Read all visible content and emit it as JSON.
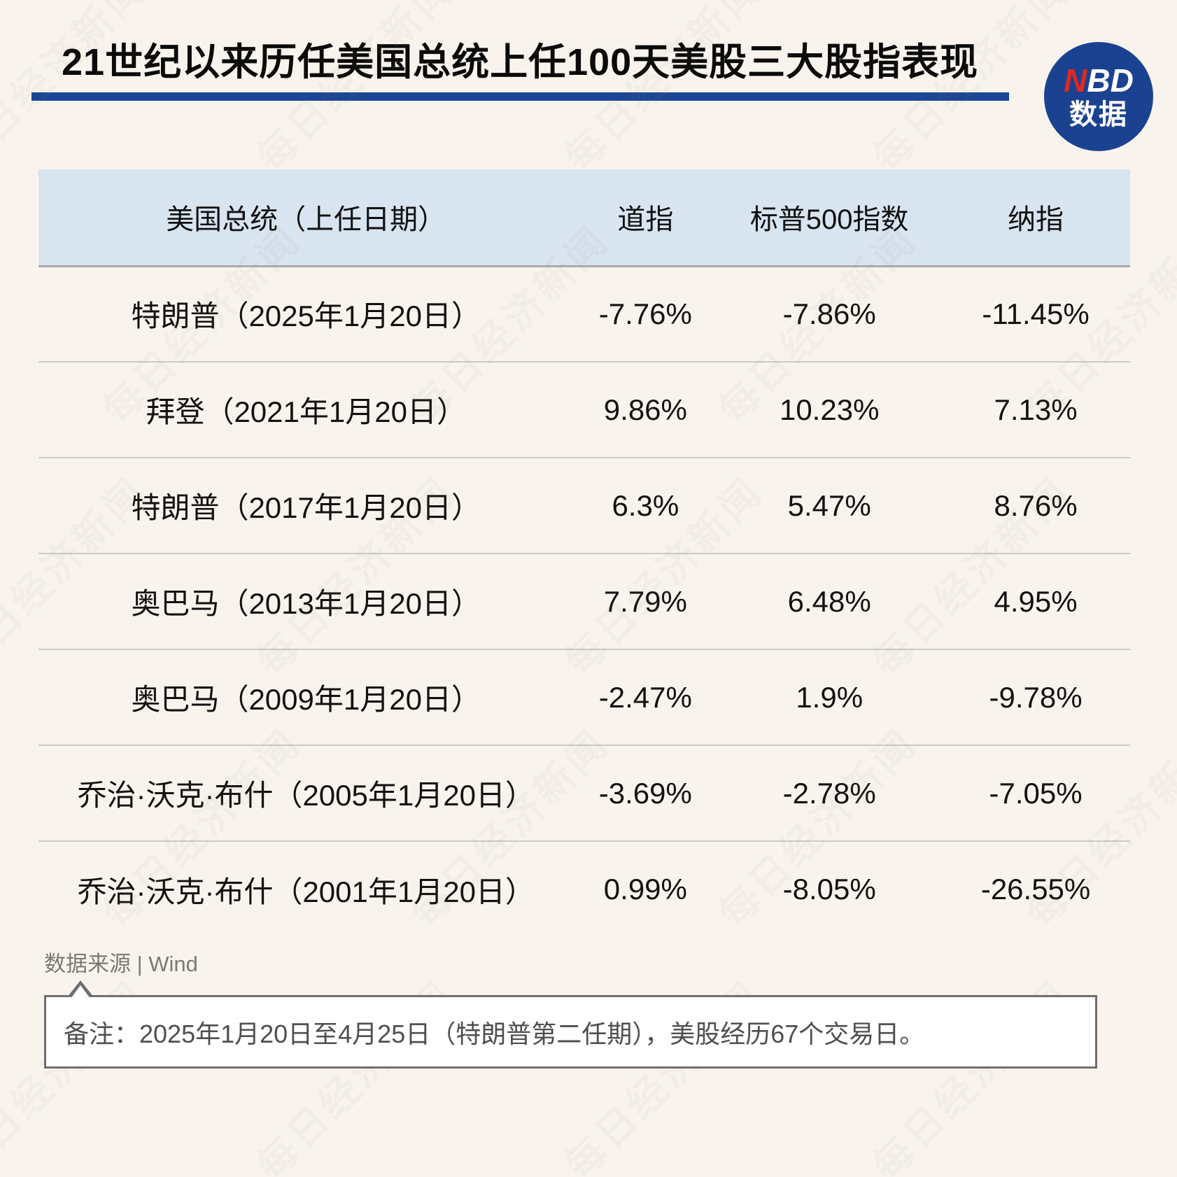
{
  "page": {
    "title": "21世纪以来历任美国总统上任100天美股三大股指表现",
    "background_color": "#F8F4ED",
    "accent_blue": "#1A4697",
    "watermark_text": "每日经济新闻"
  },
  "logo": {
    "n": "N",
    "bd": "BD",
    "line2": "数据",
    "circle_color": "#1B4291",
    "n_color": "#DD2A1E"
  },
  "table": {
    "header_bg": "#D8E4F0",
    "columns": [
      "美国总统（上任日期）",
      "道指",
      "标普500指数",
      "纳指"
    ],
    "rows": [
      {
        "president": "特朗普（2025年1月20日）",
        "dow": "-7.76%",
        "sp500": "-7.86%",
        "nasdaq": "-11.45%"
      },
      {
        "president": "拜登（2021年1月20日）",
        "dow": "9.86%",
        "sp500": "10.23%",
        "nasdaq": "7.13%"
      },
      {
        "president": "特朗普（2017年1月20日）",
        "dow": "6.3%",
        "sp500": "5.47%",
        "nasdaq": "8.76%"
      },
      {
        "president": "奥巴马（2013年1月20日）",
        "dow": "7.79%",
        "sp500": "6.48%",
        "nasdaq": "4.95%"
      },
      {
        "president": "奥巴马（2009年1月20日）",
        "dow": "-2.47%",
        "sp500": "1.9%",
        "nasdaq": "-9.78%"
      },
      {
        "president": "乔治·沃克·布什（2005年1月20日）",
        "dow": "-3.69%",
        "sp500": "-2.78%",
        "nasdaq": "-7.05%"
      },
      {
        "president": "乔治·沃克·布什（2001年1月20日）",
        "dow": "0.99%",
        "sp500": "-8.05%",
        "nasdaq": "-26.55%"
      }
    ]
  },
  "footer": {
    "source": "数据来源 | Wind",
    "note": "备注：2025年1月20日至4月25日（特朗普第二任期），美股经历67个交易日。"
  },
  "chart_data": {
    "type": "table",
    "title": "21世纪以来历任美国总统上任100天美股三大股指表现",
    "columns": [
      "美国总统（上任日期）",
      "道指",
      "标普500指数",
      "纳指"
    ],
    "rows": [
      [
        "特朗普（2025年1月20日）",
        -7.76,
        -7.86,
        -11.45
      ],
      [
        "拜登（2021年1月20日）",
        9.86,
        10.23,
        7.13
      ],
      [
        "特朗普（2017年1月20日）",
        6.3,
        5.47,
        8.76
      ],
      [
        "奥巴马（2013年1月20日）",
        7.79,
        6.48,
        4.95
      ],
      [
        "奥巴马（2009年1月20日）",
        -2.47,
        1.9,
        -9.78
      ],
      [
        "乔治·沃克·布什（2005年1月20日）",
        -3.69,
        -2.78,
        -7.05
      ],
      [
        "乔治·沃克·布什（2001年1月20日）",
        0.99,
        -8.05,
        -26.55
      ]
    ],
    "unit": "%",
    "source": "Wind",
    "note": "2025年1月20日至4月25日（特朗普第二任期），美股经历67个交易日。"
  }
}
